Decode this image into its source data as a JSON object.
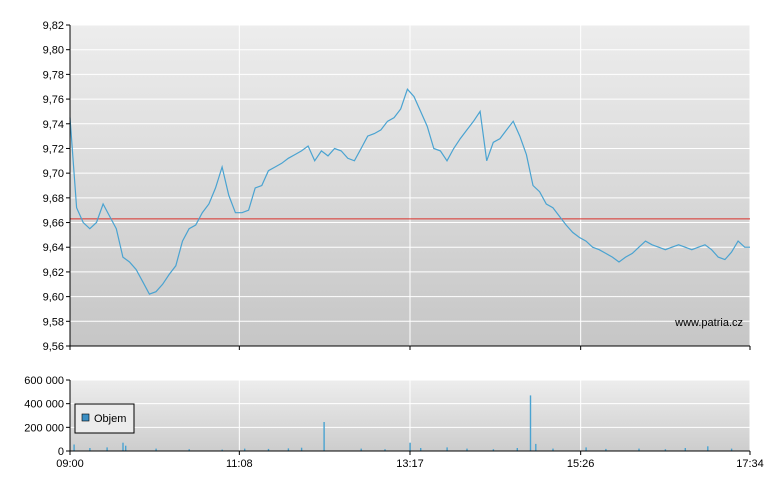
{
  "watermark": "www.patria.cz",
  "legend": {
    "label": "Objem"
  },
  "colors": {
    "price_line": "#4aa3d1",
    "reference_line": "#d9302b",
    "volume_bar": "#4aa3d1",
    "grid": "#ffffff",
    "axis": "#000000",
    "legend_swatch": "#3b8fc4"
  },
  "chart_data": [
    {
      "type": "line",
      "x_ticks": [
        "09:00",
        "11:08",
        "13:17",
        "15:26",
        "17:34"
      ],
      "y_ticks": [
        "9,56",
        "9,58",
        "9,60",
        "9,62",
        "9,64",
        "9,66",
        "9,68",
        "9,70",
        "9,72",
        "9,74",
        "9,76",
        "9,78",
        "9,80",
        "9,82"
      ],
      "ylim": [
        9.56,
        9.82
      ],
      "xlim": [
        "09:00",
        "17:34"
      ],
      "reference_value": 9.663,
      "grid": true,
      "series": [
        {
          "x": [
            "09:00",
            "09:05",
            "09:10",
            "09:15",
            "09:20",
            "09:25",
            "09:30",
            "09:35",
            "09:40",
            "09:45",
            "09:50",
            "09:55",
            "10:00",
            "10:05",
            "10:10",
            "10:15",
            "10:20",
            "10:25",
            "10:30",
            "10:35",
            "10:40",
            "10:45",
            "10:50",
            "10:55",
            "11:00",
            "11:05",
            "11:10",
            "11:15",
            "11:20",
            "11:25",
            "11:30",
            "11:35",
            "11:40",
            "11:45",
            "11:50",
            "11:55",
            "12:00",
            "12:05",
            "12:10",
            "12:15",
            "12:20",
            "12:25",
            "12:30",
            "12:35",
            "12:40",
            "12:45",
            "12:50",
            "12:55",
            "13:00",
            "13:05",
            "13:10",
            "13:15",
            "13:20",
            "13:25",
            "13:30",
            "13:35",
            "13:40",
            "13:45",
            "13:50",
            "13:55",
            "14:00",
            "14:05",
            "14:10",
            "14:15",
            "14:20",
            "14:25",
            "14:30",
            "14:35",
            "14:40",
            "14:45",
            "14:50",
            "14:55",
            "15:00",
            "15:05",
            "15:10",
            "15:15",
            "15:20",
            "15:25",
            "15:30",
            "15:35",
            "15:40",
            "15:45",
            "15:50",
            "15:55",
            "16:00",
            "16:05",
            "16:10",
            "16:15",
            "16:20",
            "16:25",
            "16:30",
            "16:35",
            "16:40",
            "16:45",
            "16:50",
            "16:55",
            "17:00",
            "17:05",
            "17:10",
            "17:15",
            "17:20",
            "17:25",
            "17:30",
            "17:34"
          ],
          "y": [
            9.745,
            9.672,
            9.66,
            9.655,
            9.66,
            9.675,
            9.665,
            9.655,
            9.632,
            9.628,
            9.622,
            9.612,
            9.602,
            9.604,
            9.61,
            9.618,
            9.625,
            9.645,
            9.655,
            9.658,
            9.668,
            9.675,
            9.688,
            9.705,
            9.682,
            9.668,
            9.668,
            9.67,
            9.688,
            9.69,
            9.702,
            9.705,
            9.708,
            9.712,
            9.715,
            9.718,
            9.722,
            9.71,
            9.718,
            9.714,
            9.72,
            9.718,
            9.712,
            9.71,
            9.72,
            9.73,
            9.732,
            9.735,
            9.742,
            9.745,
            9.752,
            9.768,
            9.762,
            9.75,
            9.738,
            9.72,
            9.718,
            9.71,
            9.72,
            9.728,
            9.735,
            9.742,
            9.75,
            9.71,
            9.725,
            9.728,
            9.735,
            9.742,
            9.73,
            9.715,
            9.69,
            9.685,
            9.675,
            9.672,
            9.665,
            9.658,
            9.652,
            9.648,
            9.645,
            9.64,
            9.638,
            9.635,
            9.632,
            9.628,
            9.632,
            9.635,
            9.64,
            9.645,
            9.642,
            9.64,
            9.638,
            9.64,
            9.642,
            9.64,
            9.638,
            9.64,
            9.642,
            9.638,
            9.632,
            9.63,
            9.636,
            9.645,
            9.64,
            9.64
          ]
        }
      ]
    },
    {
      "type": "bar",
      "x_ticks": [
        "09:00",
        "11:08",
        "13:17",
        "15:26",
        "17:34"
      ],
      "y_ticks": [
        "0",
        "200 000",
        "400 000",
        "600 000"
      ],
      "ylim": [
        0,
        600000
      ],
      "grid": true,
      "series": [
        {
          "name": "Objem",
          "x": [
            "09:03",
            "09:15",
            "09:28",
            "09:40",
            "09:42",
            "10:05",
            "10:30",
            "10:55",
            "11:12",
            "11:30",
            "11:45",
            "11:55",
            "12:12",
            "12:40",
            "12:58",
            "13:17",
            "13:25",
            "13:45",
            "14:00",
            "14:20",
            "14:38",
            "14:48",
            "14:52",
            "15:05",
            "15:30",
            "15:45",
            "16:10",
            "16:30",
            "16:45",
            "17:02",
            "17:20"
          ],
          "values": [
            55000,
            25000,
            30000,
            70000,
            45000,
            20000,
            15000,
            12000,
            20000,
            18000,
            22000,
            28000,
            245000,
            20000,
            15000,
            70000,
            25000,
            30000,
            20000,
            15000,
            25000,
            470000,
            60000,
            20000,
            30000,
            18000,
            20000,
            15000,
            25000,
            40000,
            20000
          ]
        }
      ]
    }
  ]
}
